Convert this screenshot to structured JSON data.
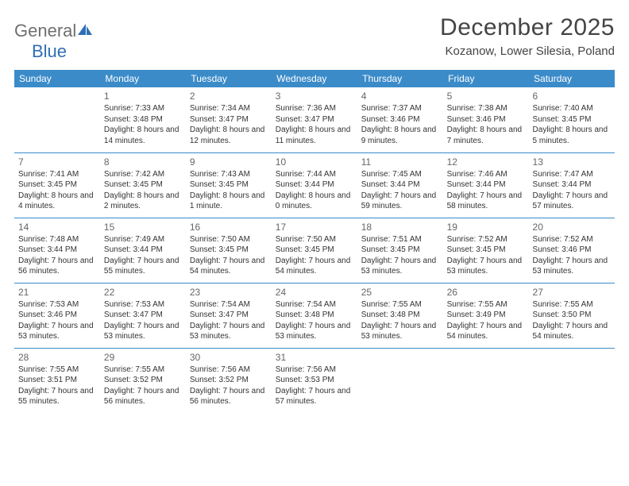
{
  "logo": {
    "text1": "General",
    "text2": "Blue"
  },
  "title": "December 2025",
  "location": "Kozanow, Lower Silesia, Poland",
  "colors": {
    "header_bg": "#3b8bc9",
    "header_text": "#ffffff",
    "rule": "#3b8bc9",
    "body_text": "#333333",
    "logo_gray": "#6f6f6f",
    "logo_blue": "#2f6fb3"
  },
  "day_headers": [
    "Sunday",
    "Monday",
    "Tuesday",
    "Wednesday",
    "Thursday",
    "Friday",
    "Saturday"
  ],
  "weeks": [
    [
      {
        "n": "",
        "sr": "",
        "ss": "",
        "dl": ""
      },
      {
        "n": "1",
        "sr": "Sunrise: 7:33 AM",
        "ss": "Sunset: 3:48 PM",
        "dl": "Daylight: 8 hours and 14 minutes."
      },
      {
        "n": "2",
        "sr": "Sunrise: 7:34 AM",
        "ss": "Sunset: 3:47 PM",
        "dl": "Daylight: 8 hours and 12 minutes."
      },
      {
        "n": "3",
        "sr": "Sunrise: 7:36 AM",
        "ss": "Sunset: 3:47 PM",
        "dl": "Daylight: 8 hours and 11 minutes."
      },
      {
        "n": "4",
        "sr": "Sunrise: 7:37 AM",
        "ss": "Sunset: 3:46 PM",
        "dl": "Daylight: 8 hours and 9 minutes."
      },
      {
        "n": "5",
        "sr": "Sunrise: 7:38 AM",
        "ss": "Sunset: 3:46 PM",
        "dl": "Daylight: 8 hours and 7 minutes."
      },
      {
        "n": "6",
        "sr": "Sunrise: 7:40 AM",
        "ss": "Sunset: 3:45 PM",
        "dl": "Daylight: 8 hours and 5 minutes."
      }
    ],
    [
      {
        "n": "7",
        "sr": "Sunrise: 7:41 AM",
        "ss": "Sunset: 3:45 PM",
        "dl": "Daylight: 8 hours and 4 minutes."
      },
      {
        "n": "8",
        "sr": "Sunrise: 7:42 AM",
        "ss": "Sunset: 3:45 PM",
        "dl": "Daylight: 8 hours and 2 minutes."
      },
      {
        "n": "9",
        "sr": "Sunrise: 7:43 AM",
        "ss": "Sunset: 3:45 PM",
        "dl": "Daylight: 8 hours and 1 minute."
      },
      {
        "n": "10",
        "sr": "Sunrise: 7:44 AM",
        "ss": "Sunset: 3:44 PM",
        "dl": "Daylight: 8 hours and 0 minutes."
      },
      {
        "n": "11",
        "sr": "Sunrise: 7:45 AM",
        "ss": "Sunset: 3:44 PM",
        "dl": "Daylight: 7 hours and 59 minutes."
      },
      {
        "n": "12",
        "sr": "Sunrise: 7:46 AM",
        "ss": "Sunset: 3:44 PM",
        "dl": "Daylight: 7 hours and 58 minutes."
      },
      {
        "n": "13",
        "sr": "Sunrise: 7:47 AM",
        "ss": "Sunset: 3:44 PM",
        "dl": "Daylight: 7 hours and 57 minutes."
      }
    ],
    [
      {
        "n": "14",
        "sr": "Sunrise: 7:48 AM",
        "ss": "Sunset: 3:44 PM",
        "dl": "Daylight: 7 hours and 56 minutes."
      },
      {
        "n": "15",
        "sr": "Sunrise: 7:49 AM",
        "ss": "Sunset: 3:44 PM",
        "dl": "Daylight: 7 hours and 55 minutes."
      },
      {
        "n": "16",
        "sr": "Sunrise: 7:50 AM",
        "ss": "Sunset: 3:45 PM",
        "dl": "Daylight: 7 hours and 54 minutes."
      },
      {
        "n": "17",
        "sr": "Sunrise: 7:50 AM",
        "ss": "Sunset: 3:45 PM",
        "dl": "Daylight: 7 hours and 54 minutes."
      },
      {
        "n": "18",
        "sr": "Sunrise: 7:51 AM",
        "ss": "Sunset: 3:45 PM",
        "dl": "Daylight: 7 hours and 53 minutes."
      },
      {
        "n": "19",
        "sr": "Sunrise: 7:52 AM",
        "ss": "Sunset: 3:45 PM",
        "dl": "Daylight: 7 hours and 53 minutes."
      },
      {
        "n": "20",
        "sr": "Sunrise: 7:52 AM",
        "ss": "Sunset: 3:46 PM",
        "dl": "Daylight: 7 hours and 53 minutes."
      }
    ],
    [
      {
        "n": "21",
        "sr": "Sunrise: 7:53 AM",
        "ss": "Sunset: 3:46 PM",
        "dl": "Daylight: 7 hours and 53 minutes."
      },
      {
        "n": "22",
        "sr": "Sunrise: 7:53 AM",
        "ss": "Sunset: 3:47 PM",
        "dl": "Daylight: 7 hours and 53 minutes."
      },
      {
        "n": "23",
        "sr": "Sunrise: 7:54 AM",
        "ss": "Sunset: 3:47 PM",
        "dl": "Daylight: 7 hours and 53 minutes."
      },
      {
        "n": "24",
        "sr": "Sunrise: 7:54 AM",
        "ss": "Sunset: 3:48 PM",
        "dl": "Daylight: 7 hours and 53 minutes."
      },
      {
        "n": "25",
        "sr": "Sunrise: 7:55 AM",
        "ss": "Sunset: 3:48 PM",
        "dl": "Daylight: 7 hours and 53 minutes."
      },
      {
        "n": "26",
        "sr": "Sunrise: 7:55 AM",
        "ss": "Sunset: 3:49 PM",
        "dl": "Daylight: 7 hours and 54 minutes."
      },
      {
        "n": "27",
        "sr": "Sunrise: 7:55 AM",
        "ss": "Sunset: 3:50 PM",
        "dl": "Daylight: 7 hours and 54 minutes."
      }
    ],
    [
      {
        "n": "28",
        "sr": "Sunrise: 7:55 AM",
        "ss": "Sunset: 3:51 PM",
        "dl": "Daylight: 7 hours and 55 minutes."
      },
      {
        "n": "29",
        "sr": "Sunrise: 7:55 AM",
        "ss": "Sunset: 3:52 PM",
        "dl": "Daylight: 7 hours and 56 minutes."
      },
      {
        "n": "30",
        "sr": "Sunrise: 7:56 AM",
        "ss": "Sunset: 3:52 PM",
        "dl": "Daylight: 7 hours and 56 minutes."
      },
      {
        "n": "31",
        "sr": "Sunrise: 7:56 AM",
        "ss": "Sunset: 3:53 PM",
        "dl": "Daylight: 7 hours and 57 minutes."
      },
      {
        "n": "",
        "sr": "",
        "ss": "",
        "dl": ""
      },
      {
        "n": "",
        "sr": "",
        "ss": "",
        "dl": ""
      },
      {
        "n": "",
        "sr": "",
        "ss": "",
        "dl": ""
      }
    ]
  ]
}
